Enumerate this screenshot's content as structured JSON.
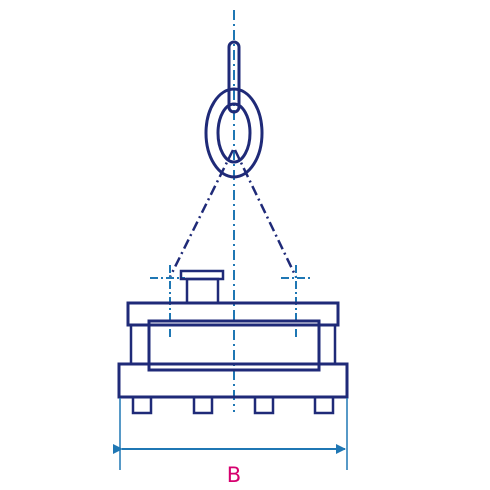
{
  "dimension": {
    "label": "B"
  },
  "colors": {
    "outline": "#1f2a78",
    "centerline": "#1f77b4",
    "dimension_line": "#1f77b4",
    "dimension_label": "#d6006f",
    "background": "#ffffff"
  }
}
